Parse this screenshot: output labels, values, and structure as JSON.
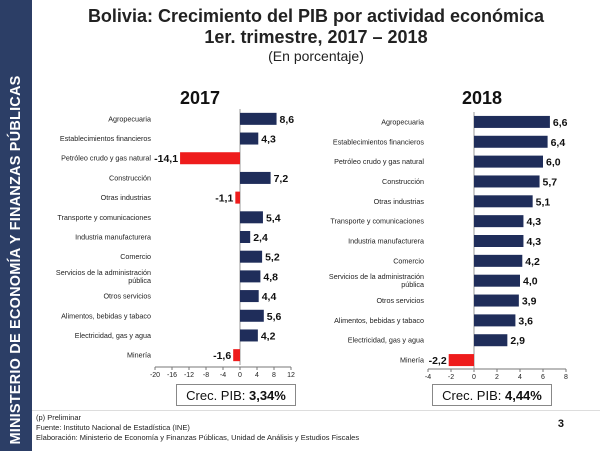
{
  "sidebar": {
    "text": "MINISTERIO DE ECONOMÍA Y FINANZAS PÚBLICAS"
  },
  "header": {
    "title_line1": "Bolivia: Crecimiento del PIB por actividad económica",
    "title_line2": "1er. trimestre, 2017 – 2018",
    "subtitle": "(En porcentaje)"
  },
  "colors": {
    "positive": "#1f2d5a",
    "negative": "#ee1c1c",
    "sidebar": "#2c3e66"
  },
  "chart_data": [
    {
      "type": "bar",
      "orientation": "horizontal",
      "title": "2017",
      "categories": [
        "Agropecuaria",
        "Establecimientos financieros",
        "Petróleo crudo y gas natural",
        "Construcción",
        "Otras industrias",
        "Transporte y comunicaciones",
        "Industria manufacturera",
        "Comercio",
        "Servicios de la administración pública",
        "Otros servicios",
        "Alimentos, bebidas y tabaco",
        "Electricidad, gas y agua",
        "Minería"
      ],
      "category_display": [
        [
          "Agropecuaria"
        ],
        [
          "Establecimientos financieros"
        ],
        [
          "Petróleo crudo y gas natural"
        ],
        [
          "Construcción"
        ],
        [
          "Otras industrias"
        ],
        [
          "Transporte y comunicaciones"
        ],
        [
          "Industria manufacturera"
        ],
        [
          "Comercio"
        ],
        [
          "Servicios de la administración",
          "pública"
        ],
        [
          "Otros servicios"
        ],
        [
          "Alimentos, bebidas y tabaco"
        ],
        [
          "Electricidad, gas y agua"
        ],
        [
          "Minería"
        ]
      ],
      "values": [
        8.6,
        4.3,
        -14.1,
        7.2,
        -1.1,
        5.4,
        2.4,
        5.2,
        4.8,
        4.4,
        5.6,
        4.2,
        -1.6
      ],
      "value_labels": [
        "8,6",
        "4,3",
        "-14,1",
        "7,2",
        "-1,1",
        "5,4",
        "2,4",
        "5,2",
        "4,8",
        "4,4",
        "5,6",
        "4,2",
        "-1,6"
      ],
      "xlim": [
        -20,
        12
      ],
      "xticks": [
        -20,
        -16,
        -12,
        -8,
        -4,
        0,
        4,
        8,
        12
      ],
      "xtick_labels": [
        "-20",
        "-16",
        "-12",
        "-8",
        "-4",
        "0",
        "4",
        "8",
        "12"
      ],
      "grid": false,
      "gdp_label": "Crec. PIB: ",
      "gdp_value": "3,34%"
    },
    {
      "type": "bar",
      "orientation": "horizontal",
      "title": "2018",
      "categories": [
        "Agropecuaria",
        "Establecimientos financieros",
        "Petróleo crudo y gas natural",
        "Construcción",
        "Otras industrias",
        "Transporte y comunicaciones",
        "Industria manufacturera",
        "Comercio",
        "Servicios de la administración pública",
        "Otros servicios",
        "Alimentos, bebidas y tabaco",
        "Electricidad, gas y agua",
        "Minería"
      ],
      "category_display": [
        [
          "Agropecuaria"
        ],
        [
          "Establecimientos financieros"
        ],
        [
          "Petróleo crudo y gas natural"
        ],
        [
          "Construcción"
        ],
        [
          "Otras industrias"
        ],
        [
          "Transporte y comunicaciones"
        ],
        [
          "Industria manufacturera"
        ],
        [
          "Comercio"
        ],
        [
          "Servicios de la administración",
          "pública"
        ],
        [
          "Otros servicios"
        ],
        [
          "Alimentos, bebidas y tabaco"
        ],
        [
          "Electricidad, gas y agua"
        ],
        [
          "Minería"
        ]
      ],
      "values": [
        6.6,
        6.4,
        6.0,
        5.7,
        5.1,
        4.3,
        4.3,
        4.2,
        4.0,
        3.9,
        3.6,
        2.9,
        -2.2
      ],
      "value_labels": [
        "6,6",
        "6,4",
        "6,0",
        "5,7",
        "5,1",
        "4,3",
        "4,3",
        "4,2",
        "4,0",
        "3,9",
        "3,6",
        "2,9",
        "-2,2"
      ],
      "xlim": [
        -4,
        8
      ],
      "xticks": [
        -4,
        -2,
        0,
        2,
        4,
        6,
        8
      ],
      "xtick_labels": [
        "-4",
        "-2",
        "0",
        "2",
        "4",
        "6",
        "8"
      ],
      "grid": false,
      "gdp_label": "Crec. PIB: ",
      "gdp_value": "4,44%"
    }
  ],
  "footer": {
    "note": "(p) Preliminar",
    "source": "Fuente: Instituto Nacional de Estadística (INE)",
    "elaboration": "Elaboración: Ministerio de Economía y Finanzas Públicas, Unidad de Análisis y Estudios Fiscales",
    "page_number": "3"
  }
}
